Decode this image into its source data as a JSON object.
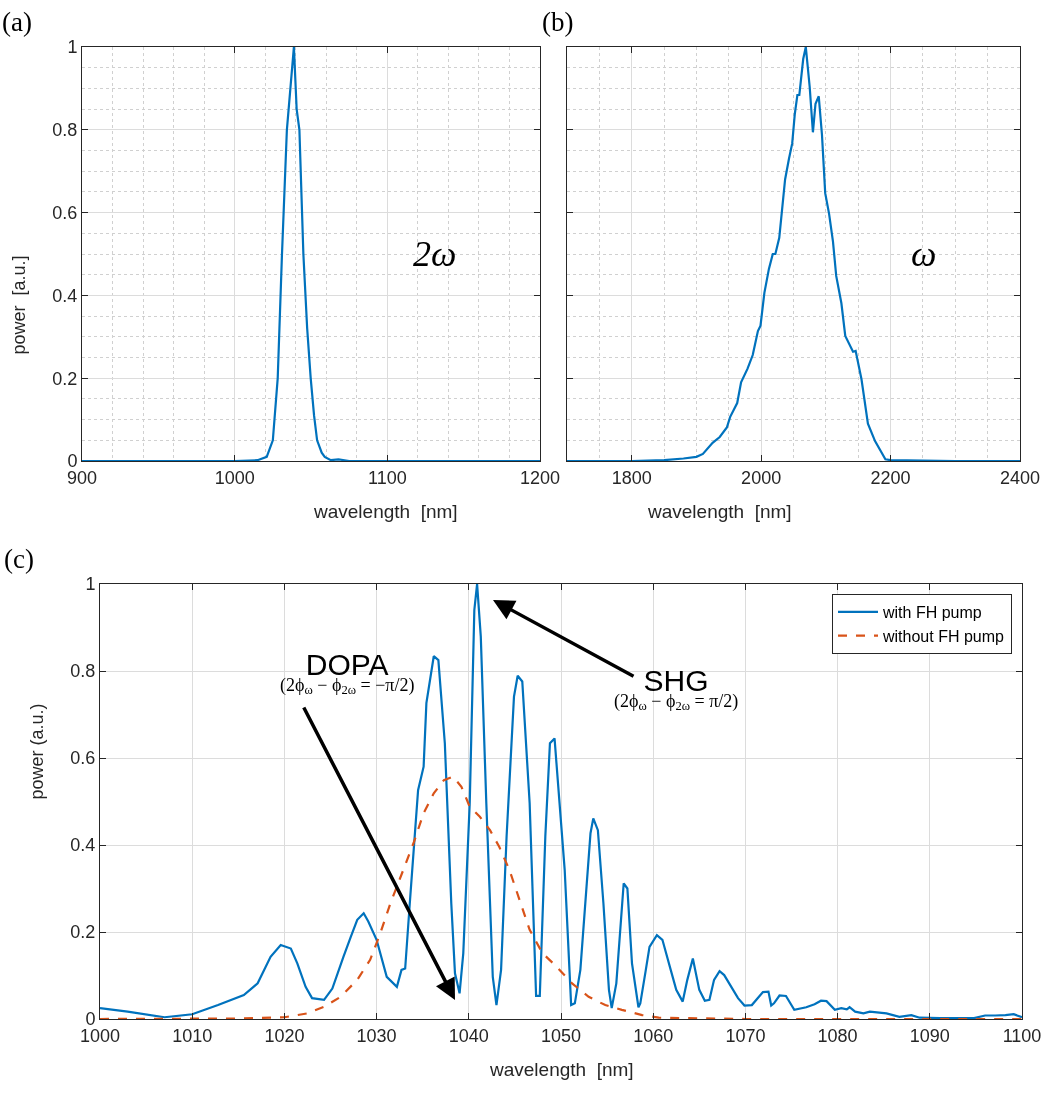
{
  "chart_data": [
    {
      "type": "line",
      "title": "(a)",
      "xlabel": "wavelength  [nm]",
      "ylabel": "power  [a.u.]",
      "grid": true,
      "xlim": [
        900,
        1200
      ],
      "ylim": [
        0,
        1
      ],
      "xticks": [
        900,
        {
          "value": 920,
          "label": null
        },
        {
          "value": 940,
          "label": null
        },
        {
          "value": 960,
          "label": null
        },
        {
          "value": 980,
          "label": null
        },
        1000,
        {
          "value": 1020,
          "label": null
        },
        {
          "value": 1040,
          "label": null
        },
        {
          "value": 1060,
          "label": null
        },
        {
          "value": 1080,
          "label": null
        },
        1100,
        {
          "value": 1120,
          "label": null
        },
        {
          "value": 1140,
          "label": null
        },
        {
          "value": 1160,
          "label": null
        },
        {
          "value": 1180,
          "label": null
        },
        1200
      ],
      "yticks": [
        0,
        {
          "value": 0.05,
          "label": null
        },
        {
          "value": 0.1,
          "label": null
        },
        {
          "value": 0.15,
          "label": null
        },
        0.2,
        {
          "value": 0.25,
          "label": null
        },
        {
          "value": 0.3,
          "label": null
        },
        {
          "value": 0.35,
          "label": null
        },
        0.4,
        {
          "value": 0.45,
          "label": null
        },
        {
          "value": 0.5,
          "label": null
        },
        {
          "value": 0.55,
          "label": null
        },
        0.6,
        {
          "value": 0.65,
          "label": null
        },
        {
          "value": 0.7,
          "label": null
        },
        {
          "value": 0.75,
          "label": null
        },
        0.8,
        {
          "value": 0.85,
          "label": null
        },
        {
          "value": 0.9,
          "label": null
        },
        {
          "value": 0.95,
          "label": null
        },
        1
      ],
      "annotations": [
        "2ω"
      ],
      "series": [
        {
          "color": "#0072bd",
          "x": [
            900,
            1000,
            1015,
            1021,
            1025,
            1028.2,
            1031,
            1034.2,
            1036.5,
            1038.8,
            1040.6,
            1042.4,
            1045,
            1047.5,
            1049.8,
            1052,
            1054,
            1057,
            1059,
            1063,
            1068,
            1075,
            1100,
            1200
          ],
          "values": [
            0,
            0,
            0.002,
            0.01,
            0.05,
            0.2,
            0.5,
            0.8,
            0.9,
            1,
            0.85,
            0.8,
            0.5,
            0.32,
            0.2,
            0.11,
            0.05,
            0.02,
            0.01,
            0.002,
            0.004,
            0,
            0,
            0
          ]
        }
      ]
    },
    {
      "type": "line",
      "title": "(b)",
      "xlabel": "wavelength  [nm]",
      "grid": true,
      "tick_labels": "x",
      "xlim": [
        1700,
        2400
      ],
      "ylim": [
        0,
        1
      ],
      "xticks": [
        {
          "value": 1750,
          "label": null
        },
        1800,
        {
          "value": 1850,
          "label": null
        },
        {
          "value": 1900,
          "label": null
        },
        {
          "value": 1950,
          "label": null
        },
        2000,
        {
          "value": 2050,
          "label": null
        },
        {
          "value": 2100,
          "label": null
        },
        {
          "value": 2150,
          "label": null
        },
        2200,
        {
          "value": 2250,
          "label": null
        },
        {
          "value": 2300,
          "label": null
        },
        {
          "value": 2350,
          "label": null
        },
        2400
      ],
      "yticks": [
        0,
        {
          "value": 0.05,
          "label": null
        },
        {
          "value": 0.1,
          "label": null
        },
        {
          "value": 0.15,
          "label": null
        },
        0.2,
        {
          "value": 0.25,
          "label": null
        },
        {
          "value": 0.3,
          "label": null
        },
        {
          "value": 0.35,
          "label": null
        },
        0.4,
        {
          "value": 0.45,
          "label": null
        },
        {
          "value": 0.5,
          "label": null
        },
        {
          "value": 0.55,
          "label": null
        },
        0.6,
        {
          "value": 0.65,
          "label": null
        },
        {
          "value": 0.7,
          "label": null
        },
        {
          "value": 0.75,
          "label": null
        },
        0.8,
        {
          "value": 0.85,
          "label": null
        },
        {
          "value": 0.9,
          "label": null
        },
        {
          "value": 0.95,
          "label": null
        },
        1
      ],
      "annotations": [
        "ω"
      ],
      "series": [
        {
          "color": "#0072bd",
          "x": [
            1700,
            1800,
            1850,
            1880,
            1900,
            1910,
            1925,
            1936,
            1947,
            1952,
            1963,
            1969,
            1979,
            1987,
            1995,
            1999,
            2005,
            2012,
            2018,
            2022,
            2028,
            2037,
            2043,
            2048,
            2052,
            2056,
            2059,
            2065,
            2069,
            2075,
            2080,
            2084,
            2089,
            2094,
            2099,
            2105,
            2111,
            2116,
            2124,
            2130,
            2142,
            2146,
            2155,
            2165,
            2176,
            2192,
            2200,
            2300,
            2400
          ],
          "values": [
            0,
            0,
            0.002,
            0.006,
            0.01,
            0.017,
            0.044,
            0.058,
            0.081,
            0.106,
            0.14,
            0.19,
            0.223,
            0.256,
            0.314,
            0.327,
            0.406,
            0.464,
            0.5,
            0.5,
            0.539,
            0.68,
            0.73,
            0.767,
            0.838,
            0.884,
            0.884,
            0.971,
            1.0,
            0.904,
            0.794,
            0.863,
            0.881,
            0.788,
            0.647,
            0.597,
            0.53,
            0.447,
            0.381,
            0.302,
            0.264,
            0.266,
            0.198,
            0.09,
            0.048,
            0.004,
            0.002,
            0,
            0
          ]
        }
      ]
    },
    {
      "type": "line",
      "title": "(c)",
      "xlabel": "wavelength  [nm]",
      "ylabel": "power (a.u.)",
      "grid": true,
      "legend": "top right",
      "xlim": [
        1000,
        1100
      ],
      "ylim": [
        0,
        1
      ],
      "xticks": [
        1000,
        1010,
        1020,
        1030,
        1040,
        1050,
        1060,
        1070,
        1080,
        1090,
        1100
      ],
      "yticks": [
        0,
        0.2,
        0.4,
        0.6,
        0.8,
        1
      ],
      "annotations": [
        "SHG\n(2ϕ$_{ω}$ − ϕ$_{2ω}$ = π/2)",
        "DOPA\n(2ϕ$_{ω}$ − ϕ$_{2ω}$ = −π/2)"
      ],
      "series": [
        {
          "name": "with FH pump",
          "color": "#0072bd",
          "line_style": "solid",
          "x": [
            1000,
            1003,
            1007,
            1010,
            1012.8,
            1015.6,
            1017.1,
            1018.5,
            1019.6,
            1020.7,
            1021.4,
            1022.3,
            1023,
            1024.3,
            1025.2,
            1026.4,
            1027.2,
            1027.9,
            1028.6,
            1029.1,
            1030,
            1031.1,
            1032.2,
            1032.7,
            1033.1,
            1033.6,
            1034.5,
            1035.1,
            1035.4,
            1036.2,
            1036.7,
            1037.4,
            1038.1,
            1038.5,
            1039,
            1039.4,
            1040.1,
            1040.6,
            1040.9,
            1041.3,
            1041.9,
            1042.6,
            1043,
            1043.5,
            1044.1,
            1044.9,
            1045.3,
            1045.8,
            1046.6,
            1047.3,
            1047.7,
            1048.3,
            1048.8,
            1049.3,
            1050.4,
            1051.1,
            1051.5,
            1052.1,
            1053.2,
            1053.5,
            1054,
            1054.6,
            1055.2,
            1055.5,
            1056,
            1056.8,
            1057.2,
            1057.7,
            1058.4,
            1058.6,
            1059.2,
            1059.6,
            1060.4,
            1061,
            1061.9,
            1062.5,
            1063.2,
            1063.7,
            1064.3,
            1065,
            1065.6,
            1066.1,
            1066.6,
            1067.2,
            1067.7,
            1069.2,
            1069.9,
            1070.7,
            1071.9,
            1072.5,
            1072.8,
            1073.1,
            1073.7,
            1074.4,
            1075.3,
            1076.6,
            1077.5,
            1078.2,
            1078.8,
            1079.7,
            1080.4,
            1081,
            1081.3,
            1081.9,
            1082.8,
            1083.5,
            1085.3,
            1086.7,
            1088,
            1088.9,
            1091.1,
            1094.8,
            1096,
            1097.1,
            1098.2,
            1099.1,
            1100
          ],
          "values": [
            0.025,
            0.017,
            0.004,
            0.011,
            0.032,
            0.055,
            0.082,
            0.143,
            0.17,
            0.162,
            0.128,
            0.074,
            0.048,
            0.044,
            0.07,
            0.143,
            0.189,
            0.228,
            0.243,
            0.224,
            0.182,
            0.097,
            0.074,
            0.113,
            0.116,
            0.266,
            0.526,
            0.58,
            0.726,
            0.834,
            0.825,
            0.634,
            0.266,
            0.105,
            0.059,
            0.151,
            0.496,
            0.94,
            1.0,
            0.879,
            0.496,
            0.097,
            0.032,
            0.113,
            0.42,
            0.741,
            0.789,
            0.776,
            0.496,
            0.053,
            0.053,
            0.42,
            0.634,
            0.645,
            0.343,
            0.032,
            0.036,
            0.113,
            0.427,
            0.461,
            0.434,
            0.266,
            0.067,
            0.025,
            0.082,
            0.312,
            0.3,
            0.128,
            0.027,
            0.036,
            0.113,
            0.166,
            0.193,
            0.182,
            0.113,
            0.067,
            0.04,
            0.09,
            0.139,
            0.067,
            0.042,
            0.044,
            0.09,
            0.11,
            0.101,
            0.048,
            0.031,
            0.032,
            0.062,
            0.063,
            0.031,
            0.036,
            0.054,
            0.053,
            0.021,
            0.027,
            0.034,
            0.042,
            0.041,
            0.021,
            0.025,
            0.022,
            0.027,
            0.017,
            0.013,
            0.017,
            0.013,
            0.005,
            0.009,
            0.003,
            0.002,
            0.002,
            0.008,
            0.008,
            0.009,
            0.011,
            0.004
          ]
        },
        {
          "name": "without FH pump",
          "color": "#d95319",
          "line_style": "dashed",
          "x": [
            1000,
            1015,
            1020,
            1022.5,
            1024.3,
            1026.1,
            1027.9,
            1029.3,
            1030.4,
            1031.5,
            1032.9,
            1034,
            1035.1,
            1036.2,
            1037.3,
            1038.3,
            1039.2,
            1040.1,
            1041.2,
            1042.3,
            1043.3,
            1044.4,
            1045.5,
            1046.6,
            1048,
            1049.3,
            1051.2,
            1053,
            1054.8,
            1056.6,
            1058.8,
            1060.6,
            1070,
            1100
          ],
          "values": [
            0,
            0.001,
            0.004,
            0.013,
            0.028,
            0.051,
            0.09,
            0.136,
            0.197,
            0.266,
            0.343,
            0.404,
            0.473,
            0.519,
            0.549,
            0.557,
            0.534,
            0.488,
            0.465,
            0.434,
            0.396,
            0.343,
            0.274,
            0.205,
            0.151,
            0.125,
            0.082,
            0.051,
            0.032,
            0.021,
            0.009,
            0.003,
            0,
            0
          ]
        }
      ]
    }
  ]
}
